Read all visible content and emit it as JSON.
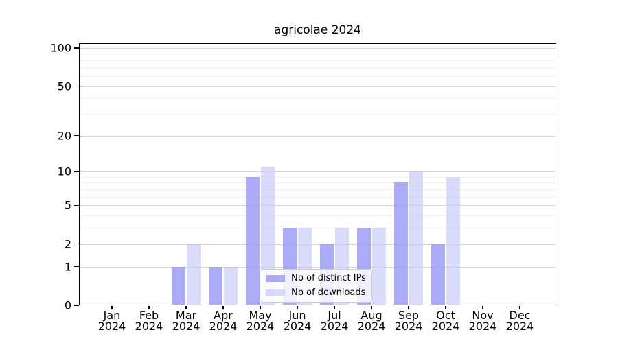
{
  "chart_data": {
    "type": "bar",
    "title": "agricolae 2024",
    "x_year": "2024",
    "categories": [
      "Jan",
      "Feb",
      "Mar",
      "Apr",
      "May",
      "Jun",
      "Jul",
      "Aug",
      "Sep",
      "Oct",
      "Nov",
      "Dec"
    ],
    "series": [
      {
        "name": "Nb of distinct IPs",
        "color": "rgba(150,150,245,0.8)",
        "color_on_white": "#ababf7",
        "values": [
          0,
          0,
          1,
          1,
          9,
          3,
          2,
          3,
          8,
          2,
          0,
          0
        ]
      },
      {
        "name": "Nb of downloads",
        "color": "rgba(187,187,248,0.55)",
        "color_on_white": "#dadafb",
        "values": [
          0,
          0,
          2,
          1,
          11,
          3,
          3,
          3,
          10,
          9,
          0,
          0
        ]
      }
    ],
    "y_scale": "log1p",
    "ylim": [
      0,
      109
    ],
    "y_ticks": [
      0,
      1,
      2,
      5,
      10,
      20,
      50,
      100
    ],
    "y_minor_gridlines": [
      3,
      4,
      6,
      7,
      8,
      9,
      30,
      40,
      60,
      70,
      80,
      90
    ],
    "grid": "on",
    "grid_major_color": "#d6d6d6",
    "grid_minor_color": "#f1f1f1",
    "axis_color": "#000000",
    "background_color": "#ffffff",
    "legend_position": "lower center"
  }
}
